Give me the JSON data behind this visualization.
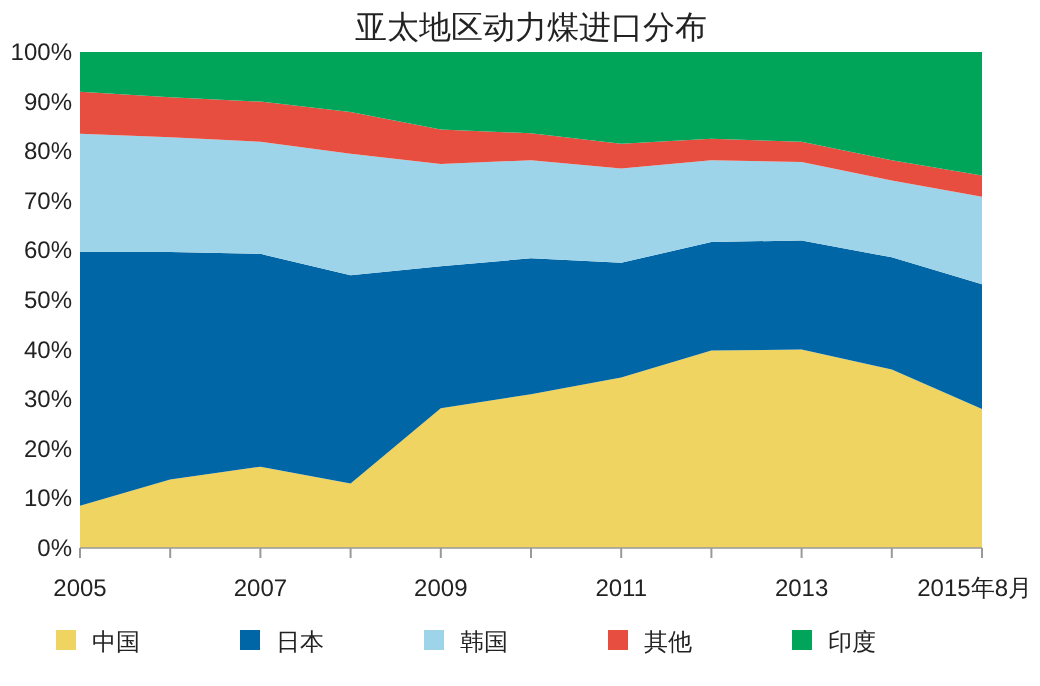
{
  "chart_data": {
    "type": "area",
    "stacked": true,
    "title": "亚太地区动力煤进口分布",
    "categories": [
      "2005",
      null,
      "2007",
      null,
      "2009",
      null,
      "2011",
      null,
      "2013",
      null,
      "2015年8月"
    ],
    "series": [
      {
        "name": "中国",
        "color": "#f0d461",
        "values": [
          8.5,
          13.8,
          16.4,
          13,
          28.2,
          31,
          34.4,
          39.8,
          40,
          36,
          28
        ]
      },
      {
        "name": "日本",
        "color": "#0066a6",
        "values": [
          51.2,
          45.9,
          42.9,
          42,
          28.6,
          27.4,
          23.1,
          21.9,
          22,
          22.6,
          25.2
        ]
      },
      {
        "name": "韩国",
        "color": "#9dd4ea",
        "values": [
          23.8,
          23.1,
          22.6,
          24.5,
          20.6,
          19.8,
          19,
          16.5,
          15.8,
          15.5,
          17.6
        ]
      },
      {
        "name": "其他",
        "color": "#e84e3f",
        "values": [
          8.5,
          8.1,
          8.1,
          8.4,
          7,
          5.4,
          5,
          4.3,
          4.1,
          4.1,
          4.3
        ]
      },
      {
        "name": "印度",
        "color": "#00a55a",
        "values": [
          8,
          9.1,
          10,
          12.1,
          15.6,
          16.4,
          18.5,
          17.5,
          18.1,
          21.8,
          24.9
        ]
      }
    ],
    "ylim": [
      0,
      100
    ],
    "yticks": [
      {
        "value": 0,
        "label": "0%"
      },
      {
        "value": 10,
        "label": "10%"
      },
      {
        "value": 20,
        "label": "20%"
      },
      {
        "value": 30,
        "label": "30%"
      },
      {
        "value": 40,
        "label": "40%"
      },
      {
        "value": 50,
        "label": "50%"
      },
      {
        "value": 60,
        "label": "60%"
      },
      {
        "value": 70,
        "label": "70%"
      },
      {
        "value": 80,
        "label": "80%"
      },
      {
        "value": 90,
        "label": "90%"
      },
      {
        "value": 100,
        "label": "100%"
      }
    ],
    "grid": false,
    "legend": "bottom"
  }
}
